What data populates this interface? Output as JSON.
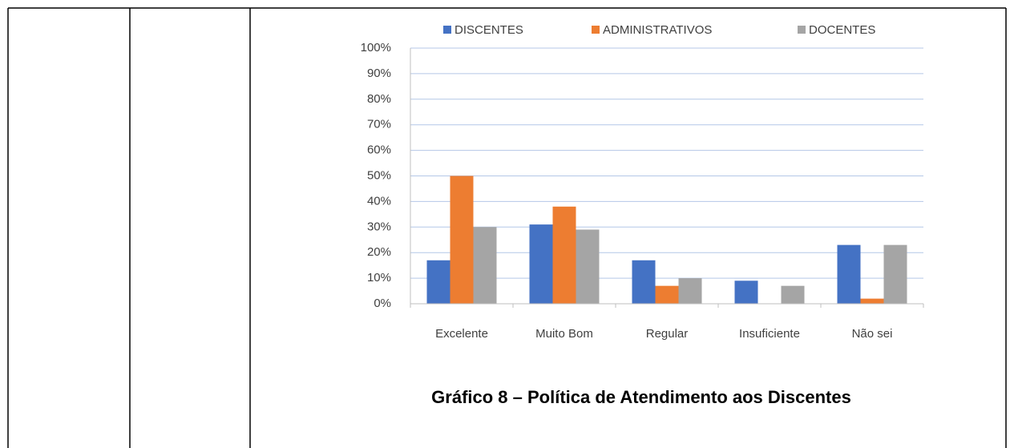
{
  "chart_data": {
    "type": "bar",
    "categories": [
      "Excelente",
      "Muito Bom",
      "Regular",
      "Insuficiente",
      "Não sei"
    ],
    "series": [
      {
        "name": "DISCENTES",
        "color": "#4472c4",
        "values": [
          17,
          31,
          17,
          9,
          23
        ]
      },
      {
        "name": "ADMINISTRATIVOS",
        "color": "#ed7d31",
        "values": [
          50,
          38,
          7,
          0,
          2
        ]
      },
      {
        "name": "DOCENTES",
        "color": "#a5a5a5",
        "values": [
          30,
          29,
          10,
          7,
          23
        ]
      }
    ],
    "ylim": [
      0,
      100
    ],
    "yticks": [
      {
        "value": 0,
        "label": "0%"
      },
      {
        "value": 10,
        "label": "10%"
      },
      {
        "value": 20,
        "label": "20%"
      },
      {
        "value": 30,
        "label": "30%"
      },
      {
        "value": 40,
        "label": "40%"
      },
      {
        "value": 50,
        "label": "50%"
      },
      {
        "value": 60,
        "label": "60%"
      },
      {
        "value": 70,
        "label": "70%"
      },
      {
        "value": 80,
        "label": "80%"
      },
      {
        "value": 90,
        "label": "90%"
      },
      {
        "value": 100,
        "label": "100%"
      }
    ],
    "grid": true,
    "legend": "top",
    "caption": "Gráfico 8 – Política de Atendimento aos Discentes"
  }
}
